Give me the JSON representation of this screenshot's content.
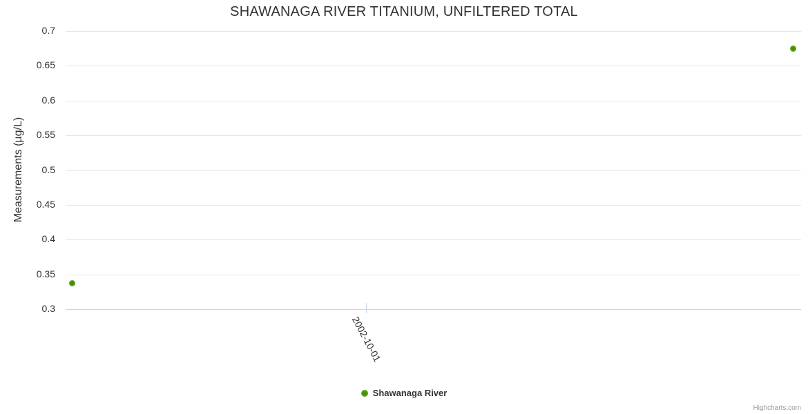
{
  "chart_data": {
    "type": "scatter",
    "title": "SHAWANAGA RIVER TITANIUM, UNFILTERED TOTAL",
    "xlabel": "",
    "ylabel": "Measurements (µg/L)",
    "ylim": [
      0.3,
      0.7
    ],
    "y_ticks": [
      0.3,
      0.35,
      0.4,
      0.45,
      0.5,
      0.55,
      0.6,
      0.65,
      0.7
    ],
    "grid": "horizontal",
    "legend_position": "bottom-center",
    "x_ticks": [
      {
        "label": "2002-10-01",
        "x_frac": 0.408
      }
    ],
    "series": [
      {
        "name": "Shawanaga River",
        "color": "#54a00e",
        "points": [
          {
            "x_frac": 0.009,
            "y": 0.337
          },
          {
            "x_frac": 0.989,
            "y": 0.675
          }
        ]
      }
    ]
  },
  "colors": {
    "grid": "#e6e6e6",
    "axis_line": "#ccd6eb",
    "text": "#333333",
    "credits_text": "#999999",
    "series_green": "#54a00e"
  },
  "credits": {
    "label": "Highcharts.com"
  }
}
